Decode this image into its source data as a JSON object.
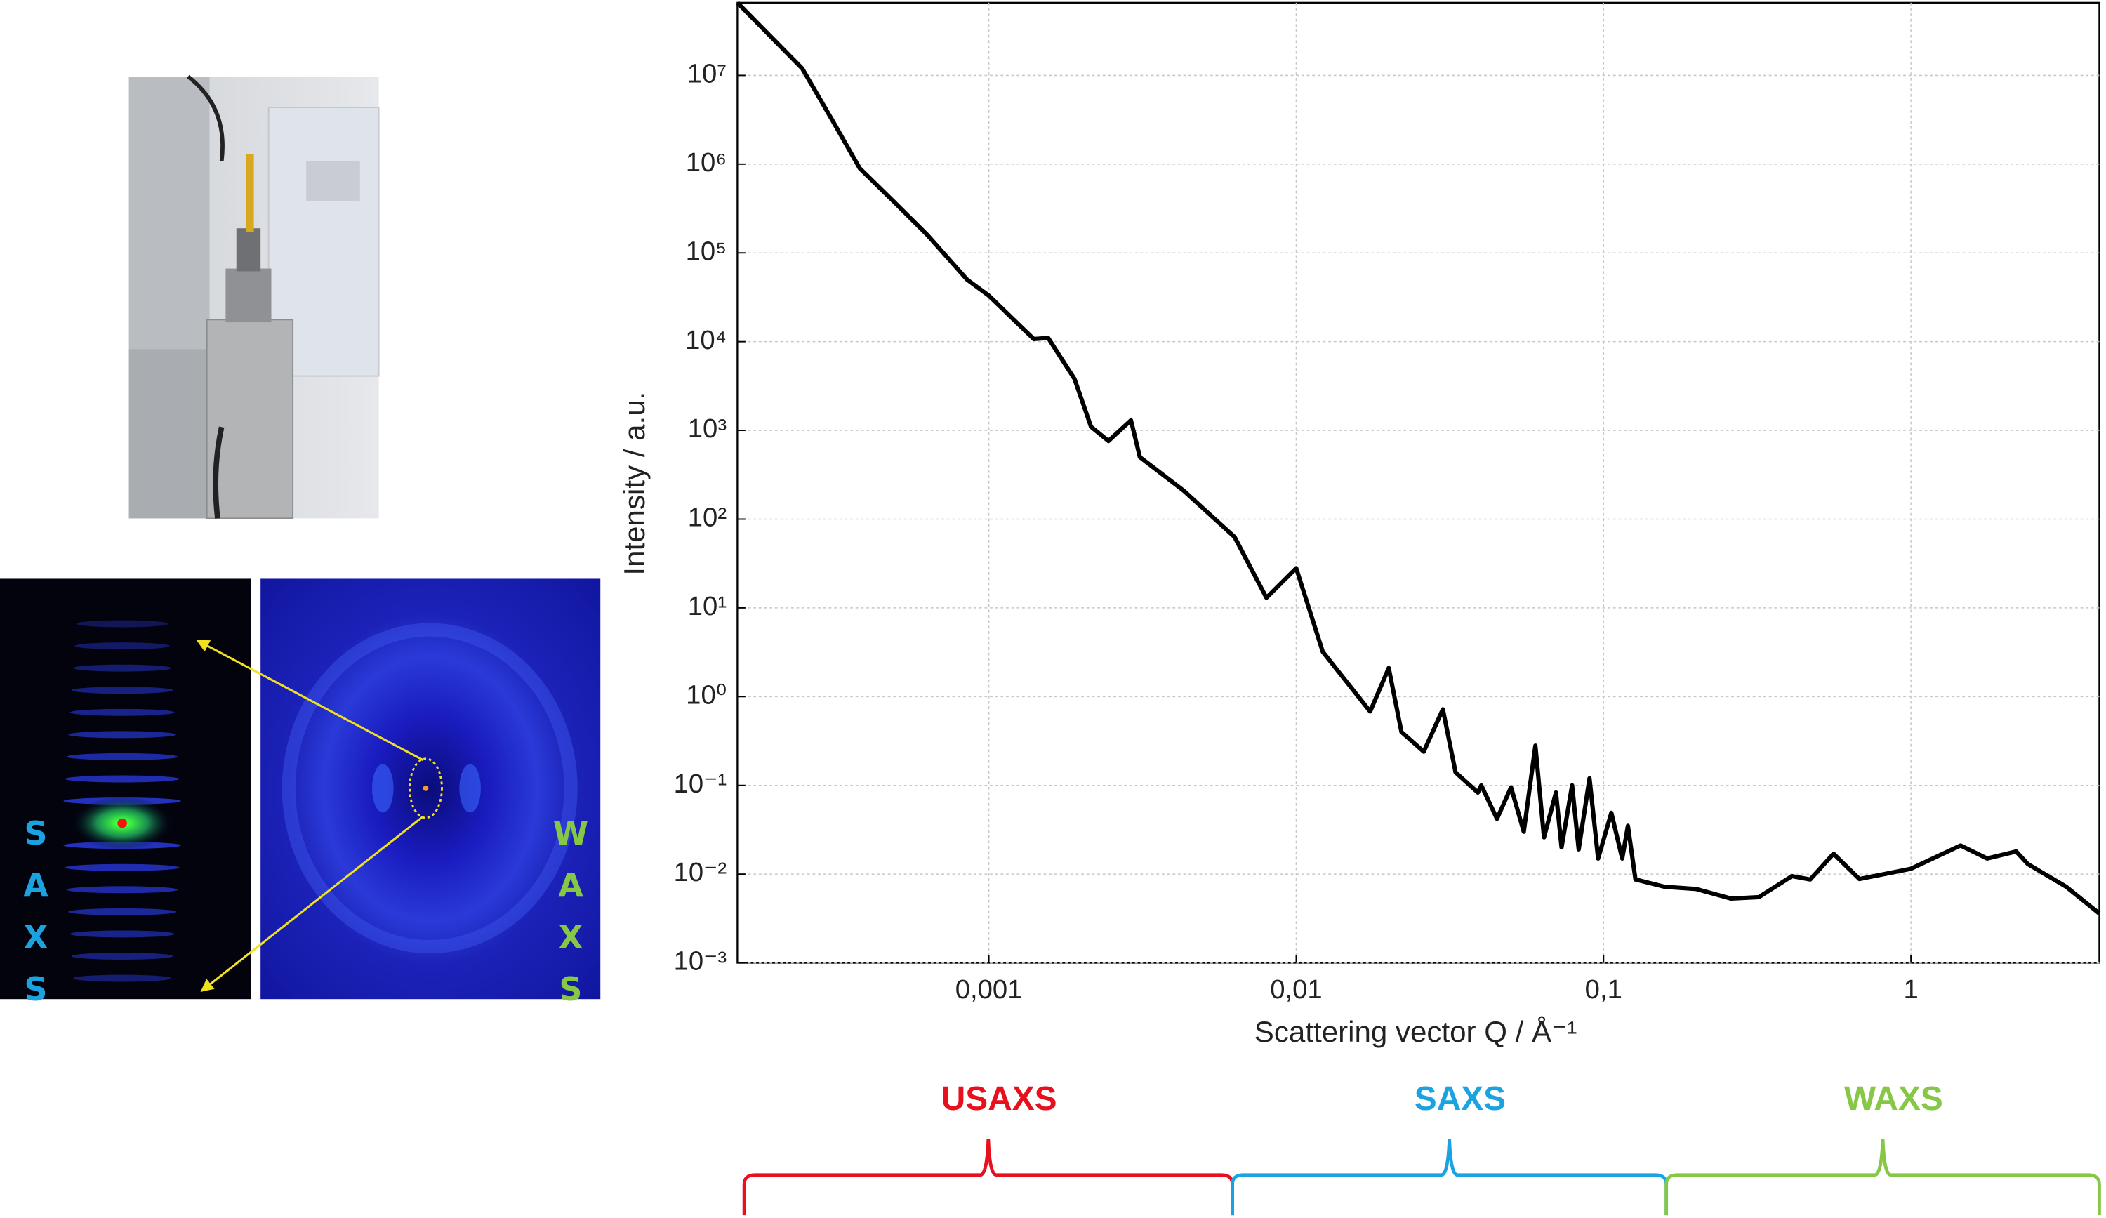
{
  "chart_data": {
    "type": "line",
    "x_label": "Scattering vector Q / Å⁻¹",
    "y_label": "Intensity / a.u.",
    "color": "#000000",
    "xlog": true,
    "ylog": true,
    "grid": true,
    "xlim": [
      0.000152,
      4.1
    ],
    "ylim": [
      0.001,
      66000000
    ],
    "xticks": [
      {
        "value": 0.001,
        "label": "0,001"
      },
      {
        "value": 0.01,
        "label": "0,01"
      },
      {
        "value": 0.1,
        "label": "0,1"
      },
      1
    ],
    "yticks": [
      {
        "value": 0.001,
        "label": "10⁻³"
      },
      {
        "value": 0.01,
        "label": "10⁻²"
      },
      {
        "value": 0.1,
        "label": "10⁻¹"
      },
      {
        "value": 1,
        "label": "10⁰"
      },
      {
        "value": 10,
        "label": "10¹"
      },
      {
        "value": 100,
        "label": "10²"
      },
      {
        "value": 1000,
        "label": "10³"
      },
      {
        "value": 10000,
        "label": "10⁴"
      },
      {
        "value": 100000,
        "label": "10⁵"
      },
      {
        "value": 1000000,
        "label": "10⁶"
      },
      {
        "value": 10000000,
        "label": "10⁷"
      }
    ],
    "x": [
      0.000152,
      0.000247,
      0.00031,
      0.00038,
      0.00049,
      0.00063,
      0.00085,
      0.001,
      0.0014,
      0.00156,
      0.0019,
      0.00215,
      0.00245,
      0.0029,
      0.0031,
      0.0043,
      0.0063,
      0.008,
      0.01,
      0.0122,
      0.0174,
      0.02,
      0.022,
      0.026,
      0.03,
      0.033,
      0.039,
      0.04,
      0.045,
      0.05,
      0.055,
      0.06,
      0.064,
      0.07,
      0.073,
      0.079,
      0.083,
      0.09,
      0.096,
      0.106,
      0.115,
      0.12,
      0.127,
      0.158,
      0.2,
      0.26,
      0.32,
      0.41,
      0.47,
      0.56,
      0.68,
      1,
      1.45,
      1.77,
      2.2,
      2.4,
      3.2,
      4.1
    ],
    "values": [
      66000000,
      12000000,
      3100000,
      900000,
      380000,
      160000,
      50000,
      33000,
      10700,
      11000,
      3800,
      1100,
      760,
      1300,
      500,
      210,
      63,
      13,
      28,
      3.2,
      0.68,
      2.1,
      0.4,
      0.24,
      0.72,
      0.14,
      0.083,
      0.1,
      0.042,
      0.095,
      0.03,
      0.28,
      0.026,
      0.083,
      0.02,
      0.1,
      0.019,
      0.12,
      0.015,
      0.049,
      0.015,
      0.035,
      0.0087,
      0.0072,
      0.0068,
      0.0053,
      0.0055,
      0.0095,
      0.0087,
      0.017,
      0.0088,
      0.0115,
      0.021,
      0.015,
      0.018,
      0.013,
      0.0072,
      0.0036
    ],
    "regions": [
      {
        "label": "USAXS",
        "color": "#e8101c",
        "range": [
          0.00016,
          0.0062
        ]
      },
      {
        "label": "SAXS",
        "color": "#1aa3e0",
        "range": [
          0.0062,
          0.16
        ]
      },
      {
        "label": "WAXS",
        "color": "#86c846",
        "range": [
          0.16,
          4.1
        ]
      }
    ]
  },
  "images": {
    "saxs_label": "SAXS",
    "waxs_label": "WAXS"
  }
}
